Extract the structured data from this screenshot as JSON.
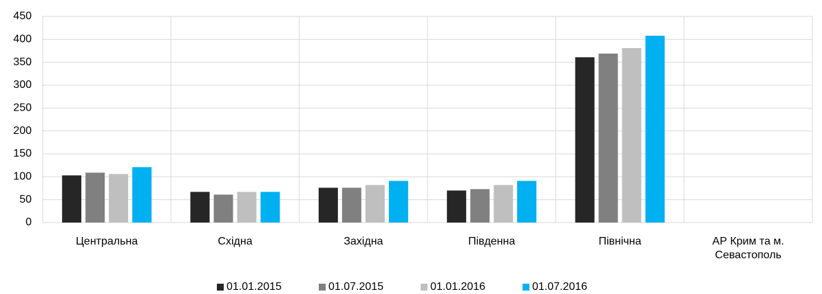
{
  "chart_data": {
    "type": "bar",
    "categories": [
      "Центральна",
      "Східна",
      "Західна",
      "Південна",
      "Північна",
      "АР Крим та м. Севастополь"
    ],
    "series": [
      {
        "name": "01.01.2015",
        "color": "#262626",
        "values": [
          103,
          67,
          76,
          70,
          361,
          null
        ]
      },
      {
        "name": "01.07.2015",
        "color": "#808080",
        "values": [
          109,
          61,
          76,
          73,
          369,
          null
        ]
      },
      {
        "name": "01.01.2016",
        "color": "#bfbfbf",
        "values": [
          106,
          67,
          82,
          82,
          381,
          null
        ]
      },
      {
        "name": "01.07.2016",
        "color": "#00b0f0",
        "values": [
          121,
          67,
          91,
          91,
          408,
          null
        ]
      }
    ],
    "ylim": [
      0,
      450
    ],
    "yticks": [
      0,
      50,
      100,
      150,
      200,
      250,
      300,
      350,
      400,
      450
    ],
    "grid": true,
    "legend": "bottom"
  }
}
